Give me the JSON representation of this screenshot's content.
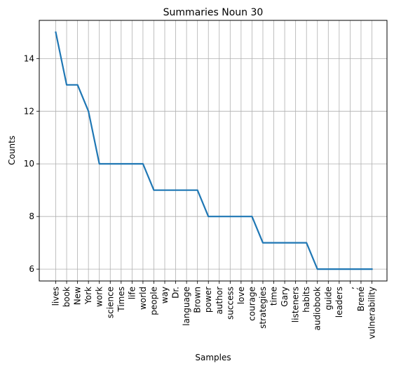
{
  "chart_data": {
    "type": "line",
    "title": "Summaries Noun 30",
    "xlabel": "Samples",
    "ylabel": "Counts",
    "categories": [
      "lives",
      "book",
      "New",
      "York",
      "work",
      "science",
      "Times",
      "life",
      "world",
      "people",
      "way",
      "Dr.",
      "language",
      "Brown",
      "power",
      "author",
      "success",
      "love",
      "courage",
      "strategies",
      "time",
      "Gary",
      "listeners",
      "habits",
      "audiobook",
      "guide",
      "leaders",
      ",",
      "Brené",
      "vulnerability"
    ],
    "values": [
      15,
      13,
      13,
      12,
      10,
      10,
      10,
      10,
      10,
      9,
      9,
      9,
      9,
      9,
      8,
      8,
      8,
      8,
      8,
      7,
      7,
      7,
      7,
      7,
      6,
      6,
      6,
      6,
      6,
      6
    ],
    "y_ticks": [
      6,
      8,
      10,
      12,
      14
    ],
    "ylim": [
      5.55,
      15.45
    ],
    "grid": true,
    "line_color": "#1f77b4",
    "grid_color": "#b0b0b0"
  }
}
